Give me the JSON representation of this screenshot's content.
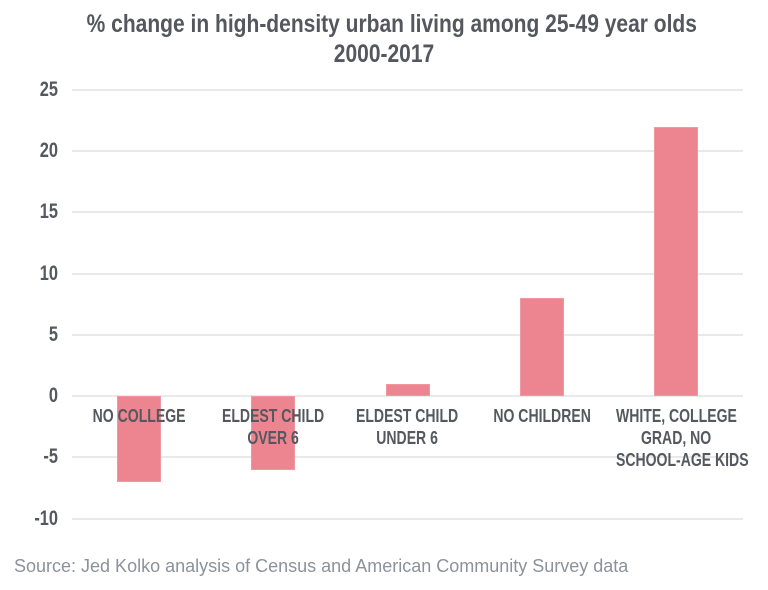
{
  "header": {
    "title_line1": "% change in high-density urban living among 25-49 year olds",
    "title_line2": "2000-2017"
  },
  "footer": {
    "source": "Source: Jed Kolko analysis of Census and American Community Survey data"
  },
  "colors": {
    "bar": "#ed8591",
    "bar_edge": "#f098a2",
    "gridline": "#e9e9e9",
    "axis_text": "#55585e",
    "title_text": "#54575e",
    "source_text": "#8b929c",
    "background": "#ffffff"
  },
  "chart_data": {
    "type": "bar",
    "title": "% change in high-density urban living among 25-49 year olds 2000-2017",
    "subtitle": "",
    "xlabel": "",
    "ylabel": "",
    "categories": [
      "NO COLLEGE",
      "ELDEST CHILD OVER 6",
      "ELDEST CHILD UNDER 6",
      "NO CHILDREN",
      "WHITE, COLLEGE GRAD, NO SCHOOL-AGE KIDS"
    ],
    "categories_lines": [
      [
        "NO COLLEGE"
      ],
      [
        "ELDEST CHILD",
        "OVER 6"
      ],
      [
        "ELDEST CHILD",
        "UNDER 6"
      ],
      [
        "NO CHILDREN"
      ],
      [
        "WHITE, COLLEGE",
        "GRAD, NO",
        "SCHOOL-AGE KIDS"
      ]
    ],
    "values": [
      -7,
      -6,
      1,
      8,
      22
    ],
    "ylim": [
      -10,
      25
    ],
    "yticks": [
      25,
      20,
      15,
      10,
      5,
      0,
      -5,
      -10
    ],
    "grid": true,
    "legend": false,
    "bar_color": "#ed8591",
    "source": "Source: Jed Kolko analysis of Census and American Community Survey data"
  }
}
